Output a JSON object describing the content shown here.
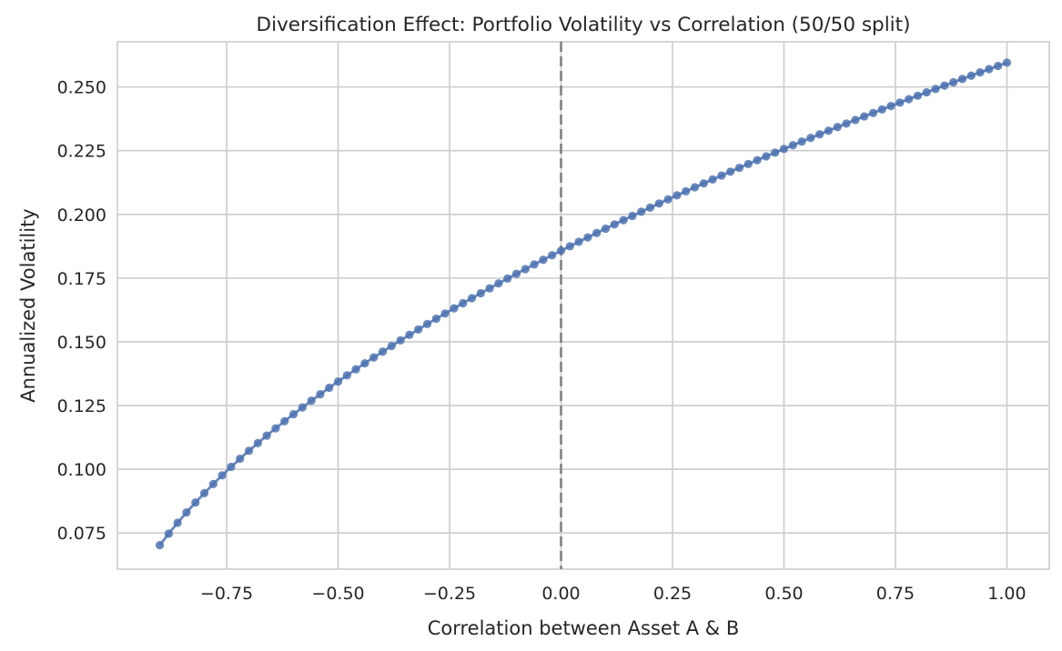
{
  "chart_data": {
    "type": "line",
    "title": "Diversification Effect: Portfolio Volatility vs Correlation (50/50 split)",
    "xlabel": "Correlation between Asset A & B",
    "ylabel": "Annualized Volatility",
    "xlim": [
      -0.995,
      1.095
    ],
    "ylim": [
      0.0608,
      0.2677
    ],
    "xticks": [
      -0.75,
      -0.5,
      -0.25,
      0.0,
      0.25,
      0.5,
      0.75,
      1.0
    ],
    "xtick_labels": [
      "−0.75",
      "−0.50",
      "−0.25",
      "0.00",
      "0.25",
      "0.50",
      "0.75",
      "1.00"
    ],
    "yticks": [
      0.075,
      0.1,
      0.125,
      0.15,
      0.175,
      0.2,
      0.225,
      0.25
    ],
    "ytick_labels": [
      "0.075",
      "0.100",
      "0.125",
      "0.150",
      "0.175",
      "0.200",
      "0.225",
      "0.250"
    ],
    "grid": true,
    "reference_line": {
      "orientation": "vertical",
      "x": 0.0,
      "style": "dashed",
      "color": "#808080"
    },
    "series": [
      {
        "color": "#4c72b0",
        "marker": "circle",
        "x_range": [
          -0.9,
          0.99
        ],
        "x_step": 0.02,
        "y_at_endpoints": [
          0.0702,
          0.2589
        ],
        "y_at_zero": 0.186,
        "model": "sqrt(a + b*x), fitted to y(-0.9)=0.0702 and y(0.99)=0.2589"
      }
    ]
  }
}
